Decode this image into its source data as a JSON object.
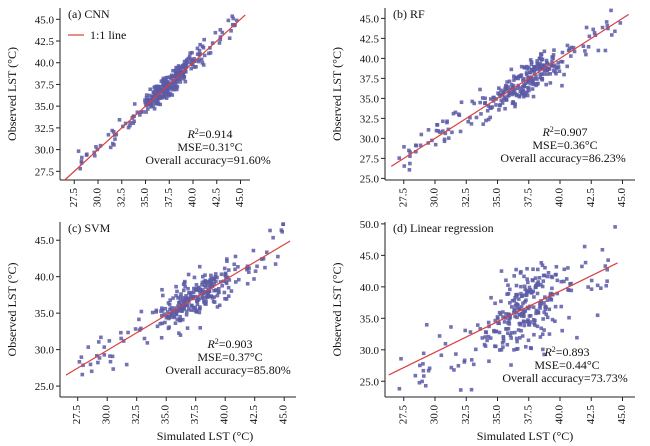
{
  "figure": {
    "x_label_left": "Simulated LST (°C)",
    "x_label_right": "Simulated LST (°C)",
    "legend_line_label": "1:1 line",
    "colors": {
      "point": "#5a5aa6",
      "line": "#d94040",
      "axis": "#222222"
    }
  },
  "chart_data": [
    {
      "type": "scatter",
      "title": "(a) CNN",
      "ylabel": "Observed LST (°C)",
      "xlim": [
        26,
        46
      ],
      "ylim": [
        26.5,
        46.3
      ],
      "xticks": [
        "27.5",
        "30.0",
        "32.5",
        "35.0",
        "37.5",
        "40.0",
        "42.5",
        "45.0"
      ],
      "yticks": [
        "27.5",
        "30.0",
        "32.5",
        "35.0",
        "37.5",
        "40.0",
        "42.5",
        "45.0"
      ],
      "xtick_values": [
        27.5,
        30,
        32.5,
        35,
        37.5,
        40,
        42.5,
        45
      ],
      "ytick_values": [
        27.5,
        30,
        32.5,
        35,
        37.5,
        40,
        42.5,
        45
      ],
      "stats": {
        "r2_prefix": "R",
        "r2_exp": "2",
        "r2_value": "=0.914",
        "mse": "MSE=0.31°C",
        "accuracy": "Overall accuracy=91.60%"
      },
      "fit_line": [
        [
          26.5,
          26.5
        ],
        [
          45.5,
          45.5
        ]
      ],
      "spread": 0.7,
      "n_points": 300
    },
    {
      "type": "scatter",
      "title": "(b) RF",
      "ylabel": "Observed LST (°C)",
      "xlim": [
        26,
        46
      ],
      "ylim": [
        24.8,
        46.3
      ],
      "xticks": [
        "27.5",
        "30.0",
        "32.5",
        "35.0",
        "37.5",
        "40.0",
        "42.5",
        "45.0"
      ],
      "yticks": [
        "25.0",
        "27.5",
        "30.0",
        "32.5",
        "35.0",
        "37.5",
        "40.0",
        "42.5",
        "45.0"
      ],
      "xtick_values": [
        27.5,
        30,
        32.5,
        35,
        37.5,
        40,
        42.5,
        45
      ],
      "ytick_values": [
        25,
        27.5,
        30,
        32.5,
        35,
        37.5,
        40,
        42.5,
        45
      ],
      "stats": {
        "r2_prefix": "R",
        "r2_exp": "2",
        "r2_value": "=0.907",
        "mse": "MSE=0.36°C",
        "accuracy": "Overall accuracy=86.23%"
      },
      "fit_line": [
        [
          26.5,
          26.5
        ],
        [
          45.5,
          45.5
        ]
      ],
      "spread": 1.1,
      "n_points": 300
    },
    {
      "type": "scatter",
      "title": "(c) SVM",
      "ylabel": "Observed LST (°C)",
      "xlim": [
        26,
        46
      ],
      "ylim": [
        23.5,
        47.5
      ],
      "xticks": [
        "27.5",
        "30.0",
        "32.5",
        "35.0",
        "37.5",
        "40.0",
        "42.5",
        "45.0"
      ],
      "yticks": [
        "25.0",
        "30.0",
        "35.0",
        "40.0",
        "45.0"
      ],
      "xtick_values": [
        27.5,
        30,
        32.5,
        35,
        37.5,
        40,
        42.5,
        45
      ],
      "ytick_values": [
        25,
        30,
        35,
        40,
        45
      ],
      "stats": {
        "r2_prefix": "R",
        "r2_exp": "2",
        "r2_value": "=0.903",
        "mse": "MSE=0.37°C",
        "accuracy": "Overall accuracy=85.80%"
      },
      "fit_line": [
        [
          26.5,
          26.5
        ],
        [
          45.5,
          44.9
        ]
      ],
      "spread": 1.5,
      "n_points": 300
    },
    {
      "type": "scatter",
      "title": "(d) Linear regression",
      "ylabel": "Observed LST (°C)",
      "xlim": [
        26,
        46
      ],
      "ylim": [
        22.5,
        50.3
      ],
      "xticks": [
        "27.5",
        "30.0",
        "32.5",
        "35.0",
        "37.5",
        "40.0",
        "42.5",
        "45.0"
      ],
      "yticks": [
        "25.0",
        "30.0",
        "35.0",
        "40.0",
        "45.0",
        "50.0"
      ],
      "xtick_values": [
        27.5,
        30,
        32.5,
        35,
        37.5,
        40,
        42.5,
        45
      ],
      "ytick_values": [
        25,
        30,
        35,
        40,
        45,
        50
      ],
      "stats": {
        "r2_prefix": "R",
        "r2_exp": "2",
        "r2_value": "=0.893",
        "mse": "MSE=0.44°C",
        "accuracy": "Overall accuracy=73.73%"
      },
      "fit_line": [
        [
          26.3,
          26.0
        ],
        [
          44.6,
          43.8
        ]
      ],
      "spread": 3.0,
      "n_points": 300
    }
  ]
}
